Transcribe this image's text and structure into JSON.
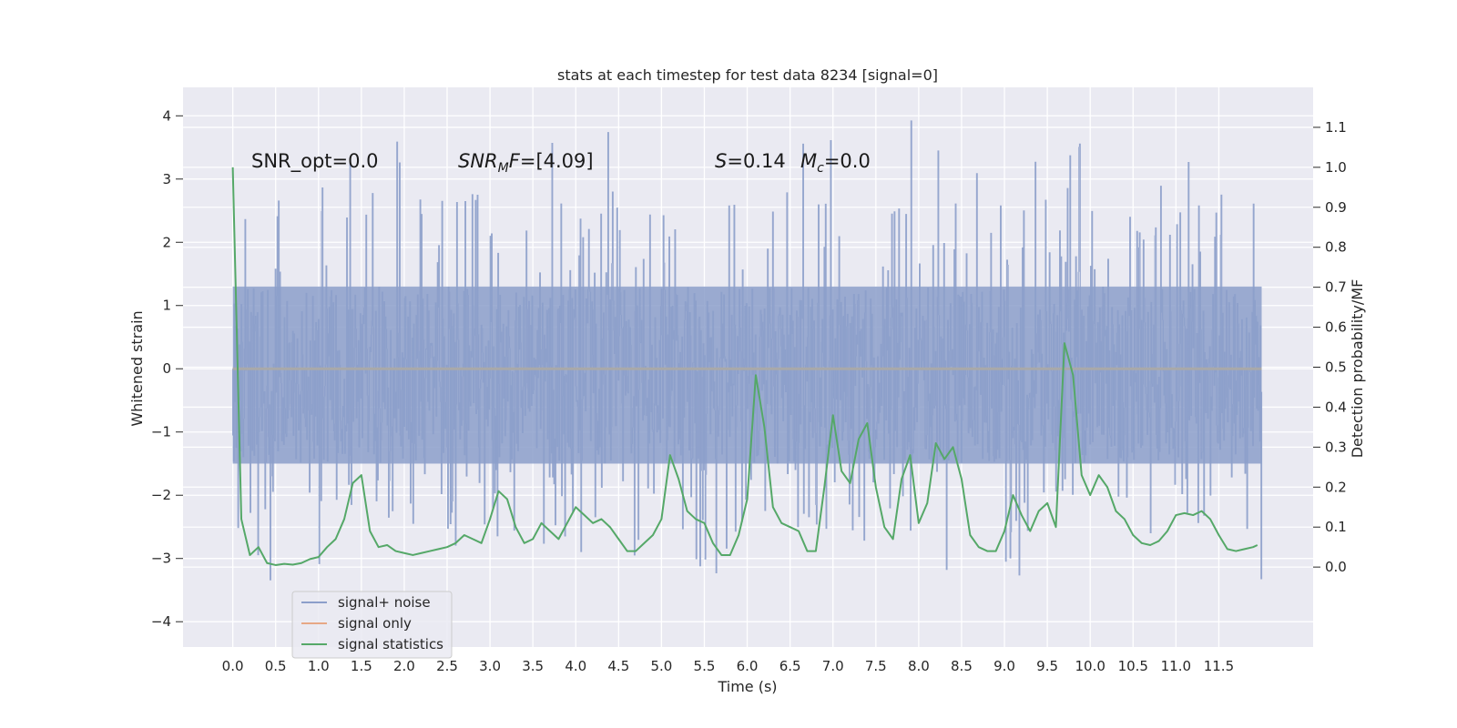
{
  "chart_data": {
    "type": "line",
    "title": "stats at each timestep for test data 8234 [signal=0]",
    "xlabel": "Time (s)",
    "ylabel": "Whitened strain",
    "y2label": "Detection probability/MF",
    "xlim": [
      -0.58,
      12.6
    ],
    "ylim": [
      -4.4,
      4.45
    ],
    "y2lim": [
      -0.2,
      1.2
    ],
    "grid": true,
    "x_ticks": [
      "0.0",
      "0.5",
      "1.0",
      "1.5",
      "2.0",
      "2.5",
      "3.0",
      "3.5",
      "4.0",
      "4.5",
      "5.0",
      "5.5",
      "6.0",
      "6.5",
      "7.0",
      "7.5",
      "8.0",
      "8.5",
      "9.0",
      "9.5",
      "10.0",
      "10.5",
      "11.0",
      "11.5"
    ],
    "y_ticks": [
      "4",
      "3",
      "2",
      "1",
      "0",
      "−1",
      "−2",
      "−3",
      "−4"
    ],
    "y2_ticks": [
      "1.1",
      "1.0",
      "0.9",
      "0.8",
      "0.7",
      "0.6",
      "0.5",
      "0.4",
      "0.3",
      "0.2",
      "0.1",
      "0.0"
    ],
    "annotations": {
      "snr_opt": "SNR_opt=0.0",
      "snr_mf": "[4.09]",
      "s_value": "=0.14",
      "mc_value": "=0.0"
    },
    "legend": {
      "placement": "lower-left",
      "entries": [
        "signal+ noise",
        "signal only",
        "signal statistics"
      ]
    },
    "series": [
      {
        "name": "signal+ noise",
        "color": "#8c9fca",
        "kind": "dense-noise",
        "x_range": [
          0.0,
          12.0
        ],
        "core_band": [
          -1.5,
          1.3
        ],
        "peak_max": 4.1,
        "trough_min": -3.45
      },
      {
        "name": "signal only",
        "color": "#e7a886",
        "x": [
          0.0,
          12.0
        ],
        "y": [
          0.0,
          0.0
        ]
      },
      {
        "name": "signal statistics",
        "color": "#55a868",
        "axis": "right",
        "x": [
          0.0,
          0.1,
          0.2,
          0.3,
          0.4,
          0.5,
          0.6,
          0.7,
          0.8,
          0.9,
          1.0,
          1.1,
          1.2,
          1.3,
          1.4,
          1.5,
          1.6,
          1.7,
          1.8,
          1.9,
          2.0,
          2.1,
          2.2,
          2.3,
          2.4,
          2.5,
          2.6,
          2.7,
          2.8,
          2.9,
          3.0,
          3.1,
          3.2,
          3.3,
          3.4,
          3.5,
          3.6,
          3.7,
          3.8,
          3.9,
          4.0,
          4.1,
          4.2,
          4.3,
          4.4,
          4.5,
          4.6,
          4.7,
          4.8,
          4.9,
          5.0,
          5.1,
          5.2,
          5.3,
          5.4,
          5.5,
          5.6,
          5.7,
          5.8,
          5.9,
          6.0,
          6.1,
          6.2,
          6.3,
          6.4,
          6.5,
          6.6,
          6.7,
          6.8,
          6.9,
          7.0,
          7.1,
          7.2,
          7.3,
          7.4,
          7.5,
          7.6,
          7.7,
          7.8,
          7.9,
          8.0,
          8.1,
          8.2,
          8.3,
          8.4,
          8.5,
          8.6,
          8.7,
          8.8,
          8.9,
          9.0,
          9.1,
          9.2,
          9.3,
          9.4,
          9.5,
          9.6,
          9.7,
          9.8,
          9.9,
          10.0,
          10.1,
          10.2,
          10.3,
          10.4,
          10.5,
          10.6,
          10.7,
          10.8,
          10.9,
          11.0,
          11.1,
          11.2,
          11.3,
          11.4,
          11.5,
          11.6,
          11.7,
          11.8,
          11.9,
          11.95
        ],
        "y": [
          1.0,
          0.12,
          0.03,
          0.05,
          0.01,
          0.005,
          0.008,
          0.006,
          0.01,
          0.02,
          0.025,
          0.05,
          0.07,
          0.12,
          0.21,
          0.23,
          0.09,
          0.05,
          0.055,
          0.04,
          0.035,
          0.03,
          0.035,
          0.04,
          0.045,
          0.05,
          0.06,
          0.08,
          0.07,
          0.06,
          0.12,
          0.19,
          0.17,
          0.1,
          0.06,
          0.07,
          0.11,
          0.09,
          0.07,
          0.11,
          0.15,
          0.13,
          0.11,
          0.12,
          0.1,
          0.07,
          0.04,
          0.04,
          0.06,
          0.08,
          0.12,
          0.28,
          0.22,
          0.14,
          0.12,
          0.11,
          0.06,
          0.03,
          0.03,
          0.08,
          0.17,
          0.48,
          0.35,
          0.15,
          0.11,
          0.1,
          0.09,
          0.04,
          0.04,
          0.2,
          0.38,
          0.24,
          0.21,
          0.32,
          0.36,
          0.2,
          0.1,
          0.07,
          0.22,
          0.28,
          0.11,
          0.16,
          0.31,
          0.27,
          0.3,
          0.22,
          0.08,
          0.05,
          0.04,
          0.04,
          0.09,
          0.18,
          0.13,
          0.09,
          0.14,
          0.16,
          0.1,
          0.56,
          0.48,
          0.23,
          0.18,
          0.23,
          0.2,
          0.14,
          0.12,
          0.08,
          0.06,
          0.055,
          0.065,
          0.09,
          0.13,
          0.135,
          0.13,
          0.14,
          0.12,
          0.08,
          0.045,
          0.04,
          0.045,
          0.05,
          0.055
        ]
      }
    ]
  }
}
